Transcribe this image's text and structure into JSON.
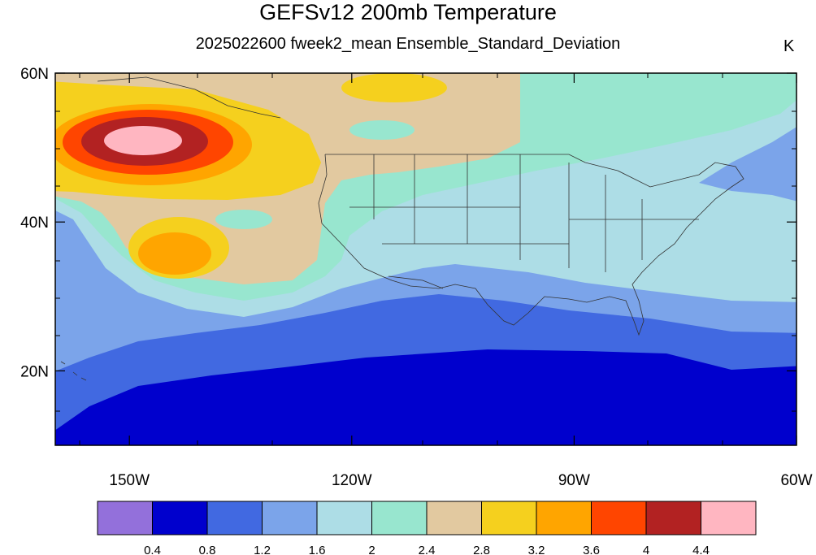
{
  "header": {
    "title": "GEFSv12 200mb Temperature",
    "subtitle": "2025022600 fweek2_mean Ensemble_Standard_Deviation",
    "units": "K"
  },
  "map": {
    "lon_range": [
      -160,
      -60
    ],
    "lat_range": [
      10,
      60
    ],
    "lat_ticks": [
      {
        "value": 60,
        "label": "60N"
      },
      {
        "value": 40,
        "label": "40N"
      },
      {
        "value": 20,
        "label": "20N"
      }
    ],
    "lon_ticks": [
      {
        "value": -150,
        "label": "150W"
      },
      {
        "value": -120,
        "label": "120W"
      },
      {
        "value": -90,
        "label": "90W"
      },
      {
        "value": -60,
        "label": "60W"
      }
    ]
  },
  "colorbar": {
    "colors": [
      "#9370DB",
      "#0000CD",
      "#4169E1",
      "#7BA4EA",
      "#ADDDE6",
      "#98E6CF",
      "#E2C9A0",
      "#F5D01E",
      "#FFA500",
      "#FF4500",
      "#B22222",
      "#FFB6C1"
    ],
    "labels": [
      "0.4",
      "0.8",
      "1.2",
      "1.6",
      "2",
      "2.4",
      "2.8",
      "3.2",
      "3.6",
      "4",
      "4.4"
    ]
  },
  "chart_data": {
    "type": "heatmap",
    "title": "GEFSv12 200mb Temperature",
    "subtitle": "2025022600 fweek2_mean Ensemble_Standard_Deviation",
    "units": "K",
    "x_range": [
      -160,
      -60
    ],
    "y_range": [
      10,
      60
    ],
    "contour_levels": [
      0.4,
      0.8,
      1.2,
      1.6,
      2,
      2.4,
      2.8,
      3.2,
      3.6,
      4,
      4.4
    ],
    "features": [
      {
        "name": "max",
        "lon": -145,
        "lat": 51,
        "value": 4.5
      },
      {
        "name": "secondary max",
        "lon": -141,
        "lat": 35,
        "value": 3.4
      },
      {
        "name": "min",
        "lon": -100,
        "lat": 14,
        "value": 0.6
      }
    ]
  }
}
